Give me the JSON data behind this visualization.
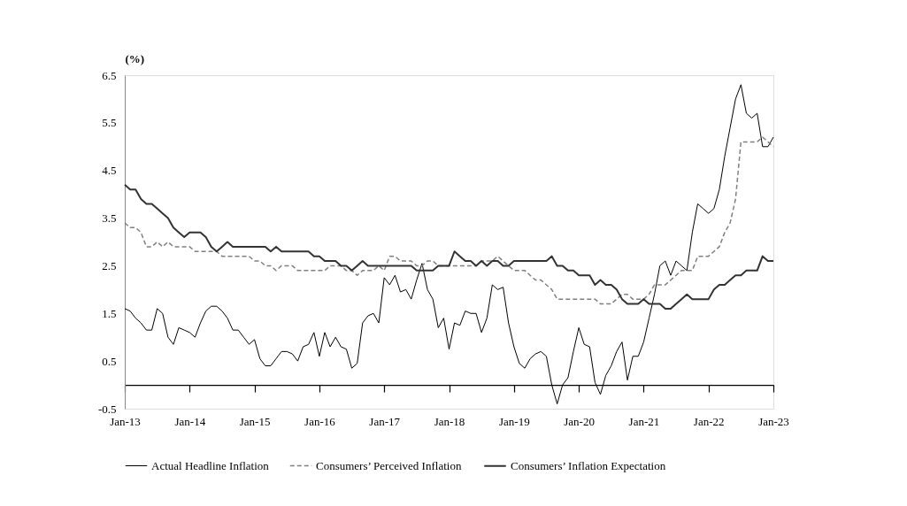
{
  "chart_data": {
    "type": "line",
    "ylabel": "(%)",
    "categories": [
      "Jan-13",
      null,
      null,
      null,
      null,
      null,
      null,
      null,
      null,
      null,
      null,
      null,
      "Jan-14",
      null,
      null,
      null,
      null,
      null,
      null,
      null,
      null,
      null,
      null,
      null,
      "Jan-15",
      null,
      null,
      null,
      null,
      null,
      null,
      null,
      null,
      null,
      null,
      null,
      "Jan-16",
      null,
      null,
      null,
      null,
      null,
      null,
      null,
      null,
      null,
      null,
      null,
      "Jan-17",
      null,
      null,
      null,
      null,
      null,
      null,
      null,
      null,
      null,
      null,
      null,
      "Jan-18",
      null,
      null,
      null,
      null,
      null,
      null,
      null,
      null,
      null,
      null,
      null,
      "Jan-19",
      null,
      null,
      null,
      null,
      null,
      null,
      null,
      null,
      null,
      null,
      null,
      "Jan-20",
      null,
      null,
      null,
      null,
      null,
      null,
      null,
      null,
      null,
      null,
      null,
      "Jan-21",
      null,
      null,
      null,
      null,
      null,
      null,
      null,
      null,
      null,
      null,
      null,
      "Jan-22",
      null,
      null,
      null,
      null,
      null,
      null,
      null,
      null,
      null,
      null,
      null,
      "Jan-23"
    ],
    "ylim": [
      -0.5,
      6.5
    ],
    "yticks": [
      -0.5,
      0.5,
      1.5,
      2.5,
      3.5,
      4.5,
      5.5,
      6.5
    ],
    "grid": false,
    "legend": "bottom",
    "marker": "none",
    "series": [
      {
        "name": "Actual Headline Inflation",
        "color": "#000000",
        "line_style": "solid",
        "values": [
          1.6,
          1.55,
          1.4,
          1.3,
          1.15,
          1.15,
          1.6,
          1.5,
          1.0,
          0.85,
          1.2,
          1.15,
          1.1,
          1.0,
          1.3,
          1.55,
          1.65,
          1.65,
          1.55,
          1.4,
          1.15,
          1.15,
          1.0,
          0.85,
          0.95,
          0.55,
          0.4,
          0.4,
          0.55,
          0.7,
          0.7,
          0.65,
          0.5,
          0.8,
          0.85,
          1.1,
          0.6,
          1.1,
          0.8,
          1.0,
          0.8,
          0.75,
          0.35,
          0.45,
          1.3,
          1.45,
          1.5,
          1.3,
          2.25,
          2.1,
          2.3,
          1.95,
          2.0,
          1.8,
          2.2,
          2.55,
          2.0,
          1.8,
          1.2,
          1.4,
          0.75,
          1.3,
          1.25,
          1.55,
          1.5,
          1.5,
          1.1,
          1.4,
          2.1,
          2.0,
          2.05,
          1.3,
          0.8,
          0.45,
          0.35,
          0.55,
          0.65,
          0.7,
          0.6,
          0.0,
          -0.4,
          0.0,
          0.15,
          0.7,
          1.2,
          0.85,
          0.8,
          0.05,
          -0.2,
          0.2,
          0.4,
          0.7,
          0.9,
          0.1,
          0.6,
          0.6,
          0.9,
          1.4,
          1.9,
          2.5,
          2.6,
          2.3,
          2.6,
          2.5,
          2.4,
          3.2,
          3.8,
          3.7,
          3.6,
          3.7,
          4.1,
          4.8,
          5.4,
          6.0,
          6.3,
          5.7,
          5.6,
          5.7,
          5.0,
          5.0,
          5.2
        ]
      },
      {
        "name": "Consumers’ Perceived Inflation",
        "color": "#808080",
        "line_style": "dashed",
        "values": [
          3.4,
          3.3,
          3.3,
          3.2,
          2.9,
          2.9,
          3.0,
          2.9,
          3.0,
          2.9,
          2.9,
          2.9,
          2.9,
          2.8,
          2.8,
          2.8,
          2.8,
          2.8,
          2.7,
          2.7,
          2.7,
          2.7,
          2.7,
          2.7,
          2.6,
          2.6,
          2.5,
          2.5,
          2.4,
          2.5,
          2.5,
          2.5,
          2.4,
          2.4,
          2.4,
          2.4,
          2.4,
          2.4,
          2.5,
          2.5,
          2.5,
          2.4,
          2.4,
          2.3,
          2.4,
          2.4,
          2.4,
          2.5,
          2.4,
          2.7,
          2.7,
          2.6,
          2.6,
          2.6,
          2.5,
          2.5,
          2.6,
          2.6,
          2.5,
          2.5,
          2.5,
          2.5,
          2.5,
          2.5,
          2.5,
          2.5,
          2.6,
          2.6,
          2.6,
          2.7,
          2.6,
          2.5,
          2.4,
          2.4,
          2.4,
          2.3,
          2.2,
          2.2,
          2.1,
          2.0,
          1.8,
          1.8,
          1.8,
          1.8,
          1.8,
          1.8,
          1.8,
          1.8,
          1.7,
          1.7,
          1.7,
          1.8,
          1.9,
          1.9,
          1.8,
          1.8,
          1.8,
          1.9,
          2.1,
          2.1,
          2.1,
          2.2,
          2.3,
          2.4,
          2.4,
          2.4,
          2.7,
          2.7,
          2.7,
          2.8,
          2.9,
          3.2,
          3.4,
          3.9,
          5.1,
          5.1,
          5.1,
          5.1,
          5.2,
          5.1,
          5.0
        ]
      },
      {
        "name": "Consumers’ Inflation Expectation",
        "color": "#333333",
        "line_style": "solid",
        "values": [
          4.2,
          4.1,
          4.1,
          3.9,
          3.8,
          3.8,
          3.7,
          3.6,
          3.5,
          3.3,
          3.2,
          3.1,
          3.2,
          3.2,
          3.2,
          3.1,
          2.9,
          2.8,
          2.9,
          3.0,
          2.9,
          2.9,
          2.9,
          2.9,
          2.9,
          2.9,
          2.9,
          2.8,
          2.9,
          2.8,
          2.8,
          2.8,
          2.8,
          2.8,
          2.8,
          2.7,
          2.7,
          2.6,
          2.6,
          2.6,
          2.5,
          2.5,
          2.4,
          2.5,
          2.6,
          2.5,
          2.5,
          2.5,
          2.5,
          2.5,
          2.5,
          2.5,
          2.5,
          2.5,
          2.4,
          2.4,
          2.4,
          2.4,
          2.5,
          2.5,
          2.5,
          2.8,
          2.7,
          2.6,
          2.6,
          2.5,
          2.6,
          2.5,
          2.6,
          2.6,
          2.5,
          2.5,
          2.6,
          2.6,
          2.6,
          2.6,
          2.6,
          2.6,
          2.6,
          2.7,
          2.5,
          2.5,
          2.4,
          2.4,
          2.3,
          2.3,
          2.3,
          2.1,
          2.2,
          2.1,
          2.1,
          2.0,
          1.8,
          1.7,
          1.7,
          1.7,
          1.8,
          1.7,
          1.7,
          1.7,
          1.6,
          1.6,
          1.7,
          1.8,
          1.9,
          1.8,
          1.8,
          1.8,
          1.8,
          2.0,
          2.1,
          2.1,
          2.2,
          2.3,
          2.3,
          2.4,
          2.4,
          2.4,
          2.7,
          2.6,
          2.6
        ]
      }
    ]
  }
}
